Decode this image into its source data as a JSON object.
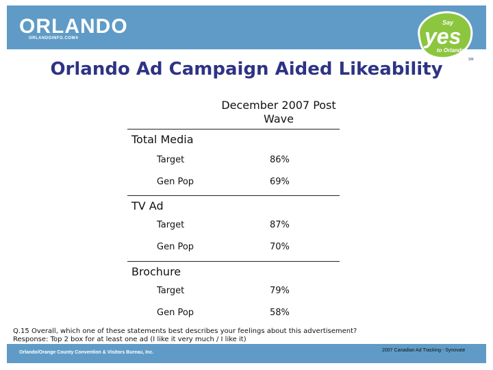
{
  "header": {
    "logo_text": "ORLANDO",
    "logo_sub": "ORLANDOINFO.COM®",
    "badge": {
      "line1": "Say",
      "line2": "yes",
      "line3": "to Orlando",
      "tm": "SM"
    },
    "band_color": "#5f9bc6"
  },
  "title": "Orlando Ad Campaign Aided Likeability",
  "column_header": {
    "line1": "December 2007 Post",
    "line2": "Wave"
  },
  "groups": [
    {
      "label": "Total Media",
      "rows": [
        {
          "label": "Target",
          "value": "86%"
        },
        {
          "label": "Gen Pop",
          "value": "69%"
        }
      ]
    },
    {
      "label": "TV Ad",
      "rows": [
        {
          "label": "Target",
          "value": "87%"
        },
        {
          "label": "Gen Pop",
          "value": "70%"
        }
      ]
    },
    {
      "label": "Brochure",
      "rows": [
        {
          "label": "Target",
          "value": "79%"
        },
        {
          "label": "Gen Pop",
          "value": "58%"
        }
      ]
    }
  ],
  "footnote": {
    "line1": "Q.15 Overall, which one of these statements best describes your feelings about this advertisement?",
    "line2": "Response: Top 2 box for at least one ad (I like it very much / I like it)"
  },
  "footer": {
    "left": "Orlando/Orange County Convention & Visitors Bureau, Inc.",
    "right": "2007 Canadian Ad Tracking - Synovate"
  }
}
